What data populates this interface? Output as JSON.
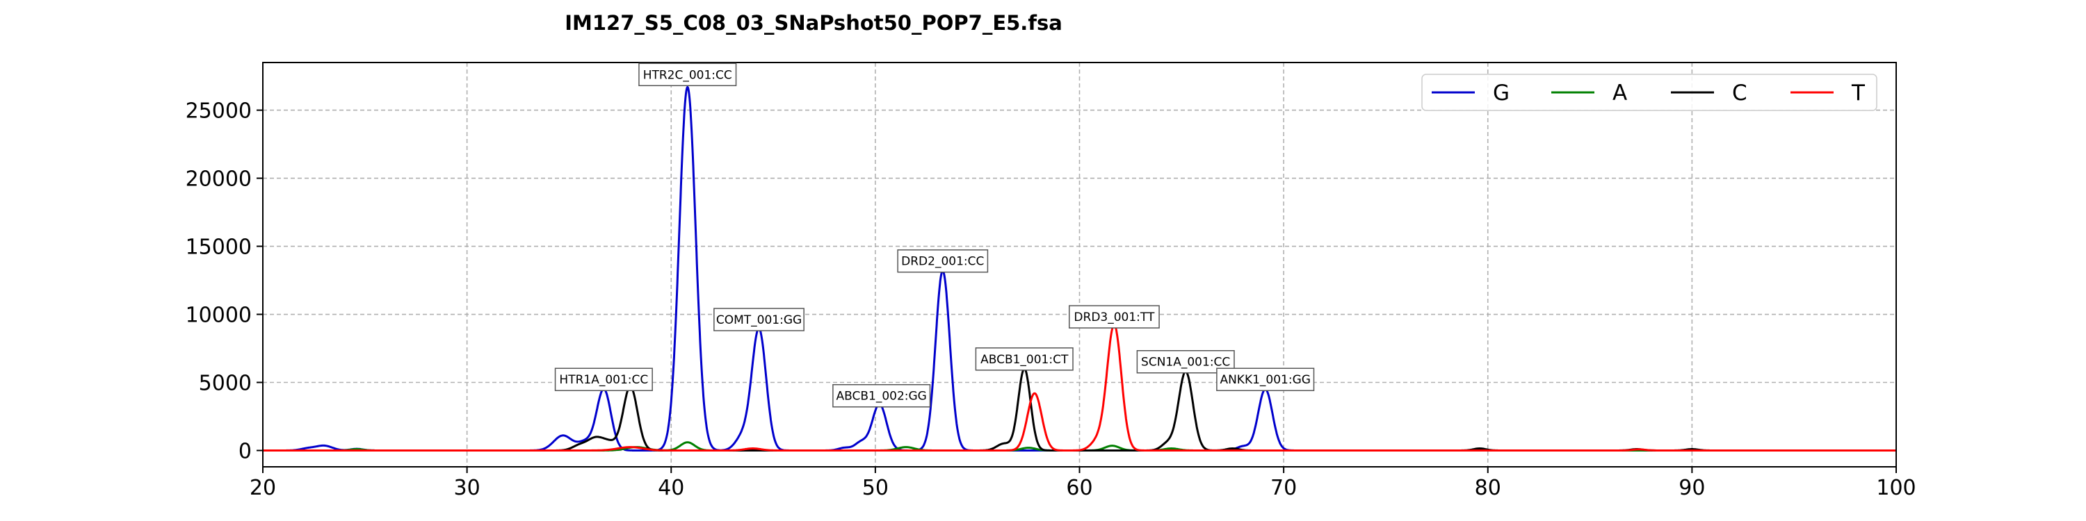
{
  "chart_data": {
    "type": "line",
    "title": "IM127_S5_C08_03_SNaPshot50_POP7_E5.fsa",
    "xlabel": "",
    "ylabel": "",
    "xlim": [
      20,
      100
    ],
    "ylim": [
      -1200,
      28500
    ],
    "xticks": [
      20,
      30,
      40,
      50,
      60,
      70,
      80,
      90,
      100
    ],
    "yticks": [
      0,
      5000,
      10000,
      15000,
      20000,
      25000
    ],
    "grid": true,
    "legend_position": "top-right",
    "series": [
      {
        "name": "G",
        "color": "#0000cc",
        "peaks": [
          [
            22.2,
            150,
            0.35
          ],
          [
            23.0,
            350,
            0.4
          ],
          [
            24.6,
            120,
            0.3
          ],
          [
            34.7,
            1100,
            0.45
          ],
          [
            35.8,
            600,
            0.35
          ],
          [
            36.7,
            4500,
            0.35
          ],
          [
            40.8,
            26700,
            0.4
          ],
          [
            43.5,
            1000,
            0.35
          ],
          [
            44.3,
            8900,
            0.35
          ],
          [
            48.5,
            200,
            0.3
          ],
          [
            49.3,
            600,
            0.3
          ],
          [
            50.2,
            3400,
            0.35
          ],
          [
            53.3,
            13200,
            0.35
          ],
          [
            68.0,
            300,
            0.3
          ],
          [
            69.1,
            4500,
            0.35
          ]
        ]
      },
      {
        "name": "A",
        "color": "#008000",
        "peaks": [
          [
            24.6,
            100,
            0.3
          ],
          [
            38.3,
            250,
            0.5
          ],
          [
            40.8,
            600,
            0.35
          ],
          [
            51.5,
            250,
            0.4
          ],
          [
            57.5,
            200,
            0.35
          ],
          [
            61.6,
            350,
            0.35
          ],
          [
            64.5,
            150,
            0.35
          ]
        ]
      },
      {
        "name": "C",
        "color": "#000000",
        "peaks": [
          [
            35.5,
            350,
            0.35
          ],
          [
            36.3,
            900,
            0.4
          ],
          [
            37.0,
            500,
            0.35
          ],
          [
            38.0,
            4700,
            0.35
          ],
          [
            56.3,
            500,
            0.35
          ],
          [
            57.3,
            6000,
            0.3
          ],
          [
            64.3,
            500,
            0.3
          ],
          [
            65.2,
            5800,
            0.35
          ],
          [
            67.5,
            150,
            0.3
          ],
          [
            79.6,
            150,
            0.3
          ],
          [
            87.3,
            100,
            0.3
          ],
          [
            90.0,
            100,
            0.3
          ]
        ]
      },
      {
        "name": "T",
        "color": "#ff0000",
        "peaks": [
          [
            38.0,
            250,
            0.6
          ],
          [
            44.0,
            150,
            0.4
          ],
          [
            57.8,
            4200,
            0.35
          ],
          [
            60.9,
            700,
            0.35
          ],
          [
            61.7,
            9200,
            0.35
          ],
          [
            87.4,
            80,
            0.3
          ]
        ]
      }
    ],
    "annotations": [
      {
        "text": "HTR1A_001:CC",
        "x": 36.7,
        "y": 4300
      },
      {
        "text": "HTR2C_001:CC",
        "x": 40.8,
        "y": 26700
      },
      {
        "text": "COMT_001:GG",
        "x": 44.3,
        "y": 8700
      },
      {
        "text": "ABCB1_002:GG",
        "x": 50.3,
        "y": 3100
      },
      {
        "text": "DRD2_001:CC",
        "x": 53.3,
        "y": 13000
      },
      {
        "text": "ABCB1_001:CT",
        "x": 57.3,
        "y": 5800
      },
      {
        "text": "DRD3_001:TT",
        "x": 61.7,
        "y": 8900
      },
      {
        "text": "SCN1A_001:CC",
        "x": 65.2,
        "y": 5600
      },
      {
        "text": "ANKK1_001:GG",
        "x": 69.1,
        "y": 4300
      }
    ]
  }
}
